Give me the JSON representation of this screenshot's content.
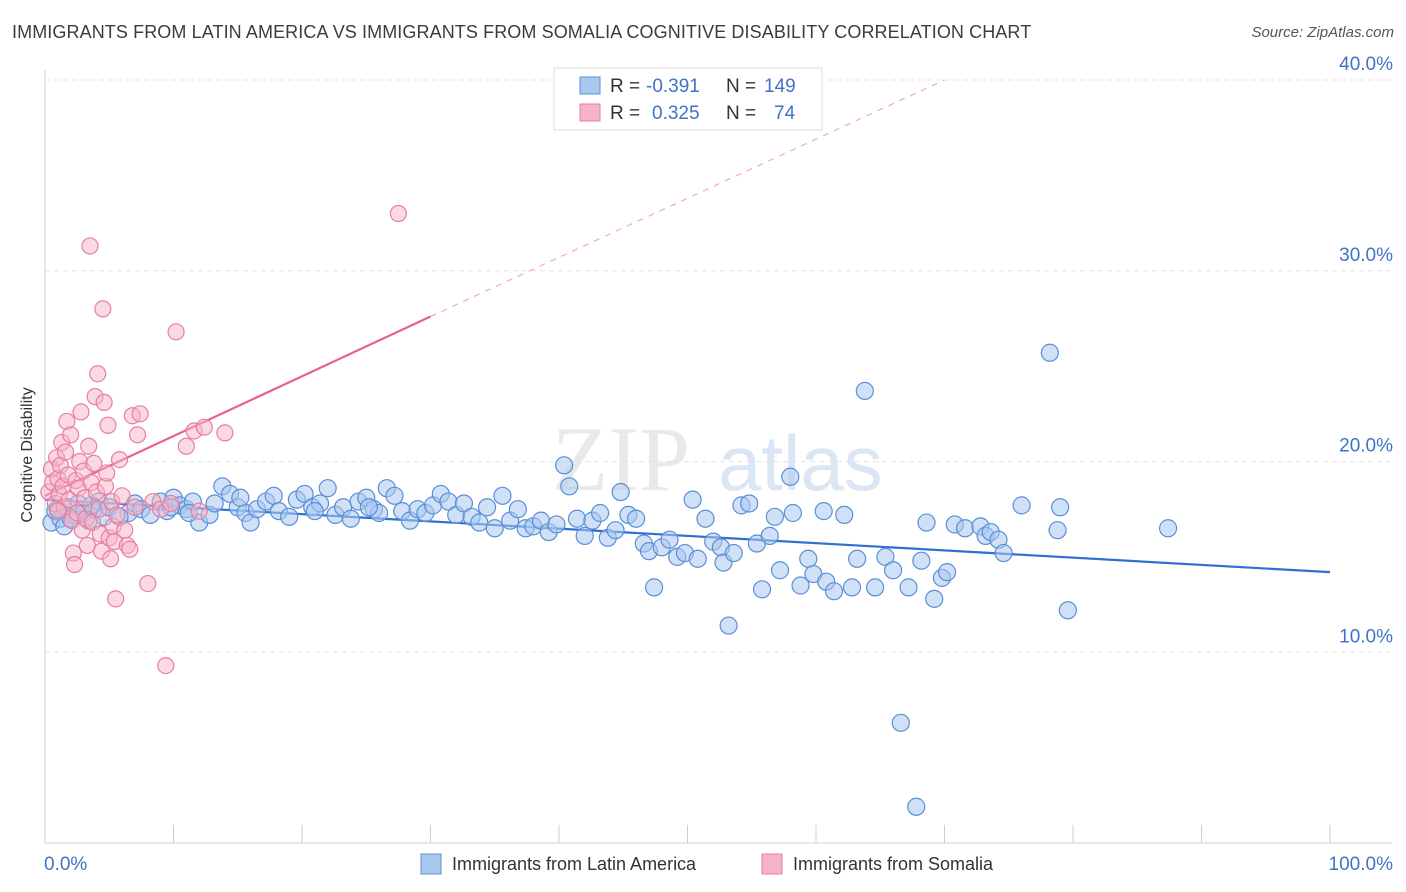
{
  "header": {
    "title": "IMMIGRANTS FROM LATIN AMERICA VS IMMIGRANTS FROM SOMALIA COGNITIVE DISABILITY CORRELATION CHART",
    "source": "Source: ZipAtlas.com"
  },
  "watermark": {
    "zip": "ZIP",
    "atlas": "atlas"
  },
  "legend_box": {
    "rows": [
      {
        "r_label": "R =",
        "r_value": "-0.391",
        "n_label": "N =",
        "n_value": "149"
      },
      {
        "r_label": "R =",
        "r_value": "0.325",
        "n_label": "N =",
        "n_value": "74"
      }
    ]
  },
  "colors": {
    "blue_fill": "#a9c8f0",
    "blue_stroke": "#5a8fd6",
    "blue_line": "#2f6fd0",
    "pink_fill": "#f6b3c8",
    "pink_stroke": "#e77fa0",
    "pink_line": "#e8608c",
    "axis_text": "#3f73c6",
    "grid": "#e4e4e4"
  },
  "chart_data": {
    "type": "scatter",
    "title": "IMMIGRANTS FROM LATIN AMERICA VS IMMIGRANTS FROM SOMALIA COGNITIVE DISABILITY CORRELATION CHART",
    "xlabel": "",
    "ylabel": "Cognitive Disability",
    "xlim": [
      0,
      100
    ],
    "ylim": [
      0,
      40
    ],
    "x_tick_labels": [
      "0.0%",
      "100.0%"
    ],
    "y_ticks": [
      10,
      20,
      30,
      40
    ],
    "y_tick_labels": [
      "10.0%",
      "20.0%",
      "30.0%",
      "40.0%"
    ],
    "grid": true,
    "legend_position": "bottom-center",
    "series": [
      {
        "name": "Immigrants from Latin America",
        "color": "#a9c8f0",
        "R": -0.391,
        "N": 149,
        "trend": {
          "x": [
            0,
            100
          ],
          "y": [
            18.0,
            14.2
          ]
        },
        "points": [
          [
            0.5,
            16.8
          ],
          [
            0.8,
            17.4
          ],
          [
            1.2,
            17.0
          ],
          [
            1.5,
            16.6
          ],
          [
            1.8,
            17.6
          ],
          [
            2.2,
            17.2
          ],
          [
            2.6,
            17.8
          ],
          [
            3.0,
            17.3
          ],
          [
            3.4,
            16.9
          ],
          [
            3.8,
            17.5
          ],
          [
            4.2,
            17.9
          ],
          [
            4.6,
            17.1
          ],
          [
            5.0,
            17.6
          ],
          [
            6.5,
            17.3
          ],
          [
            7.0,
            17.8
          ],
          [
            7.5,
            17.5
          ],
          [
            8.2,
            17.2
          ],
          [
            9.0,
            17.9
          ],
          [
            9.5,
            17.4
          ],
          [
            10.0,
            18.1
          ],
          [
            10.5,
            17.7
          ],
          [
            11.0,
            17.5
          ],
          [
            11.5,
            17.9
          ],
          [
            12.0,
            16.8
          ],
          [
            12.8,
            17.2
          ],
          [
            13.2,
            17.8
          ],
          [
            13.8,
            18.7
          ],
          [
            14.4,
            18.3
          ],
          [
            15.0,
            17.6
          ],
          [
            15.6,
            17.3
          ],
          [
            16.0,
            16.8
          ],
          [
            16.5,
            17.5
          ],
          [
            17.2,
            17.9
          ],
          [
            17.8,
            18.2
          ],
          [
            18.2,
            17.4
          ],
          [
            19.0,
            17.1
          ],
          [
            19.6,
            18.0
          ],
          [
            20.2,
            18.3
          ],
          [
            20.8,
            17.6
          ],
          [
            21.4,
            17.8
          ],
          [
            22.0,
            18.6
          ],
          [
            22.6,
            17.2
          ],
          [
            23.2,
            17.6
          ],
          [
            23.8,
            17.0
          ],
          [
            24.4,
            17.9
          ],
          [
            25.0,
            18.1
          ],
          [
            25.6,
            17.5
          ],
          [
            26.0,
            17.3
          ],
          [
            26.6,
            18.6
          ],
          [
            27.2,
            18.2
          ],
          [
            27.8,
            17.4
          ],
          [
            28.4,
            16.9
          ],
          [
            29.0,
            17.5
          ],
          [
            29.6,
            17.3
          ],
          [
            30.2,
            17.7
          ],
          [
            30.8,
            18.3
          ],
          [
            31.4,
            17.9
          ],
          [
            32.0,
            17.2
          ],
          [
            32.6,
            17.8
          ],
          [
            33.2,
            17.1
          ],
          [
            33.8,
            16.8
          ],
          [
            34.4,
            17.6
          ],
          [
            35.0,
            16.5
          ],
          [
            35.6,
            18.2
          ],
          [
            36.2,
            16.9
          ],
          [
            36.8,
            17.5
          ],
          [
            37.4,
            16.5
          ],
          [
            38.0,
            16.6
          ],
          [
            38.6,
            16.9
          ],
          [
            39.2,
            16.3
          ],
          [
            39.8,
            16.7
          ],
          [
            40.4,
            19.8
          ],
          [
            40.8,
            18.7
          ],
          [
            41.4,
            17.0
          ],
          [
            42.0,
            16.1
          ],
          [
            42.6,
            16.9
          ],
          [
            43.2,
            17.3
          ],
          [
            43.8,
            16.0
          ],
          [
            44.4,
            16.4
          ],
          [
            44.8,
            18.4
          ],
          [
            45.4,
            17.2
          ],
          [
            46.0,
            17.0
          ],
          [
            46.6,
            15.7
          ],
          [
            47.0,
            15.3
          ],
          [
            47.4,
            13.4
          ],
          [
            48.0,
            15.5
          ],
          [
            48.6,
            15.9
          ],
          [
            49.2,
            15.0
          ],
          [
            49.8,
            15.2
          ],
          [
            50.4,
            18.0
          ],
          [
            50.8,
            14.9
          ],
          [
            51.4,
            17.0
          ],
          [
            52.0,
            15.8
          ],
          [
            52.6,
            15.5
          ],
          [
            52.8,
            14.7
          ],
          [
            53.2,
            11.4
          ],
          [
            53.6,
            15.2
          ],
          [
            54.2,
            17.7
          ],
          [
            54.8,
            17.8
          ],
          [
            55.4,
            15.7
          ],
          [
            55.8,
            13.3
          ],
          [
            56.4,
            16.1
          ],
          [
            56.8,
            17.1
          ],
          [
            57.2,
            14.3
          ],
          [
            58.0,
            19.2
          ],
          [
            58.2,
            17.3
          ],
          [
            58.8,
            13.5
          ],
          [
            59.4,
            14.9
          ],
          [
            59.8,
            14.1
          ],
          [
            60.6,
            17.4
          ],
          [
            60.8,
            13.7
          ],
          [
            61.4,
            13.2
          ],
          [
            62.2,
            17.2
          ],
          [
            62.8,
            13.4
          ],
          [
            63.2,
            14.9
          ],
          [
            63.8,
            23.7
          ],
          [
            64.6,
            13.4
          ],
          [
            65.4,
            15.0
          ],
          [
            66.0,
            14.3
          ],
          [
            66.6,
            6.3
          ],
          [
            67.2,
            13.4
          ],
          [
            67.8,
            1.9
          ],
          [
            68.2,
            14.8
          ],
          [
            68.6,
            16.8
          ],
          [
            69.2,
            12.8
          ],
          [
            69.8,
            13.9
          ],
          [
            70.2,
            14.2
          ],
          [
            70.8,
            16.7
          ],
          [
            71.6,
            16.5
          ],
          [
            72.8,
            16.6
          ],
          [
            73.2,
            16.1
          ],
          [
            73.6,
            16.3
          ],
          [
            74.2,
            15.9
          ],
          [
            74.6,
            15.2
          ],
          [
            76.0,
            17.7
          ],
          [
            78.2,
            25.7
          ],
          [
            78.8,
            16.4
          ],
          [
            79.0,
            17.6
          ],
          [
            79.6,
            12.2
          ],
          [
            87.4,
            16.5
          ],
          [
            1.0,
            17.5
          ],
          [
            2.0,
            17.0
          ],
          [
            3.6,
            17.7
          ],
          [
            5.8,
            17.1
          ],
          [
            9.8,
            17.6
          ],
          [
            11.2,
            17.3
          ],
          [
            15.2,
            18.1
          ],
          [
            21.0,
            17.4
          ],
          [
            25.2,
            17.6
          ]
        ]
      },
      {
        "name": "Immigrants from Somalia",
        "color": "#f6b3c8",
        "R": 0.325,
        "N": 74,
        "trend": {
          "x": [
            0,
            30
          ],
          "y": [
            18.2,
            27.6
          ],
          "dashed_to": [
            70,
            40.0
          ]
        },
        "points": [
          [
            0.3,
            18.4
          ],
          [
            0.5,
            19.6
          ],
          [
            0.6,
            18.9
          ],
          [
            0.8,
            17.8
          ],
          [
            0.9,
            20.2
          ],
          [
            1.0,
            19.1
          ],
          [
            1.1,
            18.3
          ],
          [
            1.2,
            19.8
          ],
          [
            1.3,
            21.0
          ],
          [
            1.4,
            18.7
          ],
          [
            1.5,
            17.6
          ],
          [
            1.6,
            20.5
          ],
          [
            1.7,
            22.1
          ],
          [
            1.8,
            19.3
          ],
          [
            1.9,
            18.0
          ],
          [
            2.0,
            21.4
          ],
          [
            2.1,
            16.9
          ],
          [
            2.2,
            15.2
          ],
          [
            2.3,
            14.6
          ],
          [
            2.4,
            19.0
          ],
          [
            2.5,
            17.3
          ],
          [
            2.6,
            18.6
          ],
          [
            2.7,
            20.0
          ],
          [
            2.8,
            22.6
          ],
          [
            2.9,
            16.4
          ],
          [
            3.0,
            19.5
          ],
          [
            3.1,
            18.1
          ],
          [
            3.2,
            17.0
          ],
          [
            3.3,
            15.6
          ],
          [
            3.4,
            20.8
          ],
          [
            3.5,
            31.3
          ],
          [
            3.6,
            18.9
          ],
          [
            3.7,
            16.8
          ],
          [
            3.8,
            19.9
          ],
          [
            3.9,
            23.4
          ],
          [
            4.0,
            18.4
          ],
          [
            4.1,
            24.6
          ],
          [
            4.2,
            17.5
          ],
          [
            4.3,
            16.2
          ],
          [
            4.4,
            15.3
          ],
          [
            4.5,
            28.0
          ],
          [
            4.6,
            23.1
          ],
          [
            4.7,
            18.7
          ],
          [
            4.8,
            19.4
          ],
          [
            4.9,
            21.9
          ],
          [
            5.0,
            16.0
          ],
          [
            5.1,
            14.9
          ],
          [
            5.2,
            17.9
          ],
          [
            5.3,
            16.6
          ],
          [
            5.4,
            15.8
          ],
          [
            5.5,
            12.8
          ],
          [
            5.6,
            17.2
          ],
          [
            5.8,
            20.1
          ],
          [
            6.0,
            18.2
          ],
          [
            6.2,
            16.4
          ],
          [
            6.4,
            15.6
          ],
          [
            6.6,
            15.4
          ],
          [
            6.8,
            22.4
          ],
          [
            7.0,
            17.6
          ],
          [
            7.2,
            21.4
          ],
          [
            7.4,
            22.5
          ],
          [
            8.0,
            13.6
          ],
          [
            8.4,
            17.9
          ],
          [
            9.0,
            17.5
          ],
          [
            9.4,
            9.3
          ],
          [
            9.8,
            17.8
          ],
          [
            10.2,
            26.8
          ],
          [
            11.0,
            20.8
          ],
          [
            11.6,
            21.6
          ],
          [
            12.0,
            17.4
          ],
          [
            12.4,
            21.8
          ],
          [
            14.0,
            21.5
          ],
          [
            27.5,
            33.0
          ],
          [
            1.0,
            17.4
          ]
        ]
      }
    ]
  },
  "bottom_legend": {
    "items": [
      {
        "label": "Immigrants from Latin America"
      },
      {
        "label": "Immigrants from Somalia"
      }
    ]
  }
}
